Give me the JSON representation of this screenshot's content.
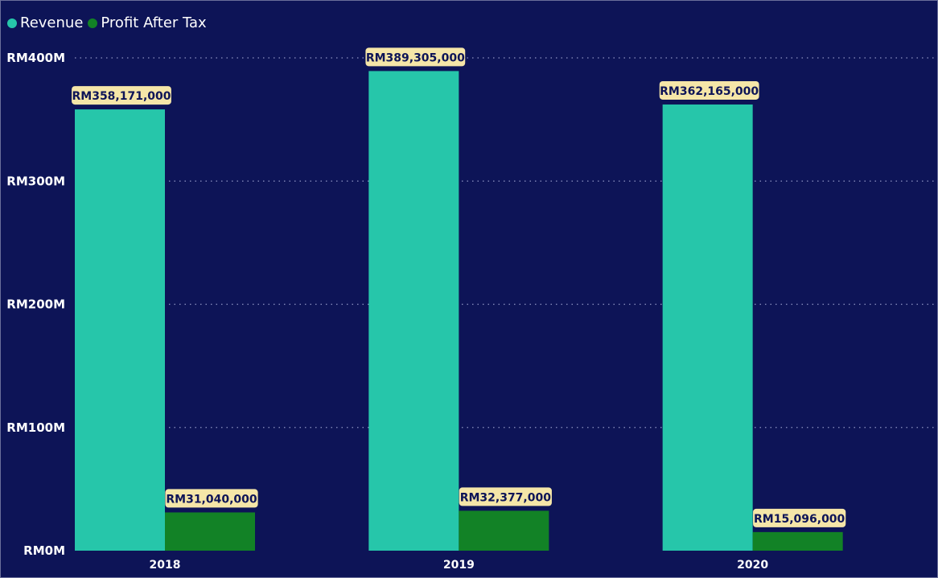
{
  "chart_data": {
    "type": "bar",
    "title": "",
    "xlabel": "",
    "ylabel": "",
    "categories": [
      "2018",
      "2019",
      "2020"
    ],
    "series": [
      {
        "name": "Revenue",
        "color": "#26c6aa",
        "values": [
          358171000,
          389305000,
          362165000
        ],
        "labels": [
          "RM358,171,000",
          "RM389,305,000",
          "RM362,165,000"
        ]
      },
      {
        "name": "Profit After Tax",
        "color": "#128226",
        "values": [
          31040000,
          32377000,
          15096000
        ],
        "labels": [
          "RM31,040,000",
          "RM32,377,000",
          "RM15,096,000"
        ]
      }
    ],
    "ylim": [
      0,
      400000000
    ],
    "yticks": [
      0,
      100000000,
      200000000,
      300000000,
      400000000
    ],
    "ytick_labels": [
      "RM0M",
      "RM100M",
      "RM200M",
      "RM300M",
      "RM400M"
    ],
    "grid": true,
    "legend_position": "top-left",
    "data_label_background": "#f5e6a8",
    "background_color": "#0d1457"
  }
}
